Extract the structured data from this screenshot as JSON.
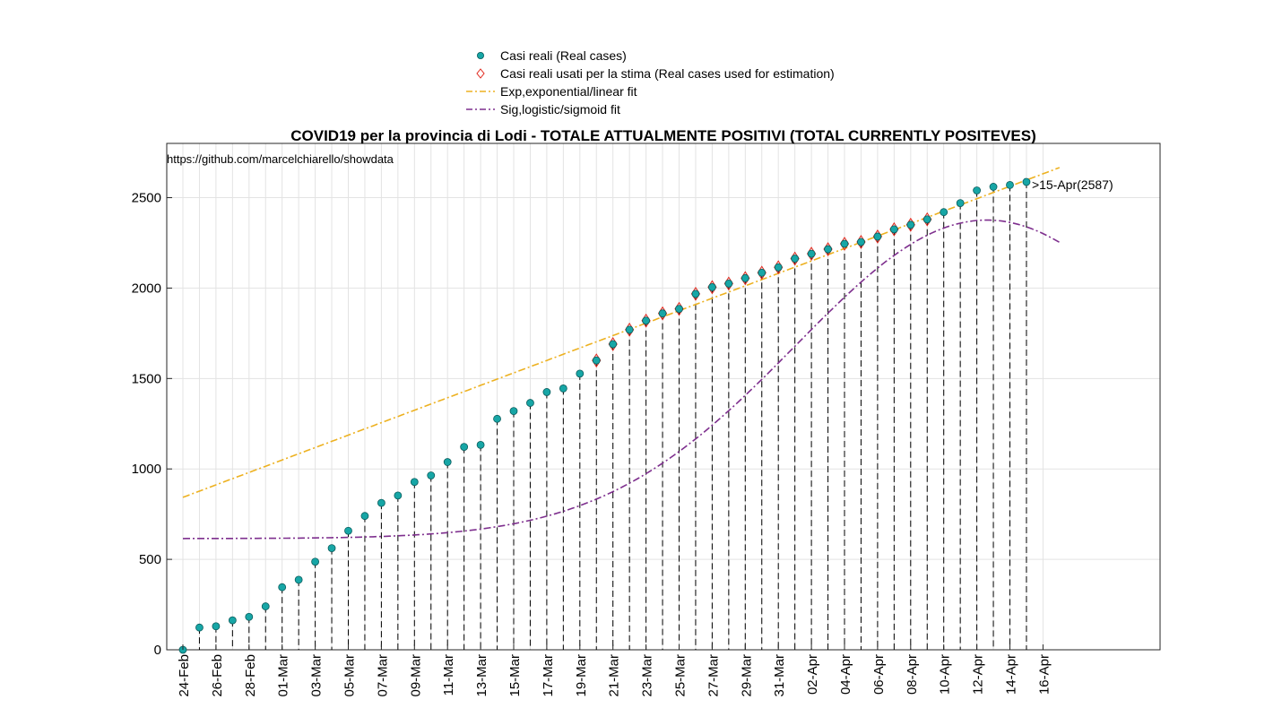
{
  "title": "COVID19 per la provincia di Lodi - TOTALE ATTUALMENTE POSITIVI (TOTAL CURRENTLY POSITEVES)",
  "source_text": "https://github.com/marcelchiarello/showdata",
  "legend": [
    {
      "label": "Casi reali (Real cases)",
      "kind": "dot"
    },
    {
      "label": "Casi reali usati per la stima (Real cases used for estimation)",
      "kind": "diamond"
    },
    {
      "label": "Exp,exponential/linear fit",
      "kind": "dashdot-orange"
    },
    {
      "label": "Sig,logistic/sigmoid fit",
      "kind": "dashdot-purple"
    }
  ],
  "colors": {
    "real": "#17a6a6",
    "real_edge": "#0a5c5c",
    "estimation": "#e0261b",
    "exp_fit": "#edb120",
    "sig_fit": "#7e2f8e",
    "grid": "#e3e3e3",
    "axis": "#262626"
  },
  "chart_data": {
    "type": "scatter",
    "xlabel": "",
    "ylabel": "",
    "x_day_range": [
      0,
      52
    ],
    "ylim": [
      0,
      2800
    ],
    "yticks": [
      0,
      500,
      1000,
      1500,
      2000,
      2500
    ],
    "xtick_labels": [
      "24-Feb",
      "26-Feb",
      "28-Feb",
      "01-Mar",
      "03-Mar",
      "05-Mar",
      "07-Mar",
      "09-Mar",
      "11-Mar",
      "13-Mar",
      "15-Mar",
      "17-Mar",
      "19-Mar",
      "21-Mar",
      "23-Mar",
      "25-Mar",
      "27-Mar",
      "29-Mar",
      "31-Mar",
      "02-Apr",
      "04-Apr",
      "06-Apr",
      "08-Apr",
      "10-Apr",
      "12-Apr",
      "14-Apr",
      "16-Apr"
    ],
    "real_cases_day0": "24-Feb",
    "real_cases": [
      0,
      123,
      130,
      163,
      182,
      240,
      346,
      387,
      487,
      562,
      658,
      740,
      812,
      853,
      928,
      964,
      1038,
      1122,
      1133,
      1277,
      1320,
      1365,
      1425,
      1445,
      1527,
      1600,
      1690,
      1770,
      1820,
      1860,
      1885,
      1968,
      2005,
      2025,
      2055,
      2085,
      2115,
      2163,
      2190,
      2215,
      2245,
      2255,
      2285,
      2325,
      2350,
      2380,
      2420,
      2470,
      2540,
      2560,
      2570,
      2587
    ],
    "estimation_start_day": 25,
    "exp_fit": {
      "start": 843,
      "slope": 34.4,
      "from_day": 0,
      "to_day": 53
    },
    "sig_fit": {
      "L": 2376,
      "y0": 615,
      "k": 0.0866,
      "peak_day": 48.6,
      "from_day": 0,
      "to_day": 53
    },
    "annotation": ">15-Apr(2587)"
  }
}
